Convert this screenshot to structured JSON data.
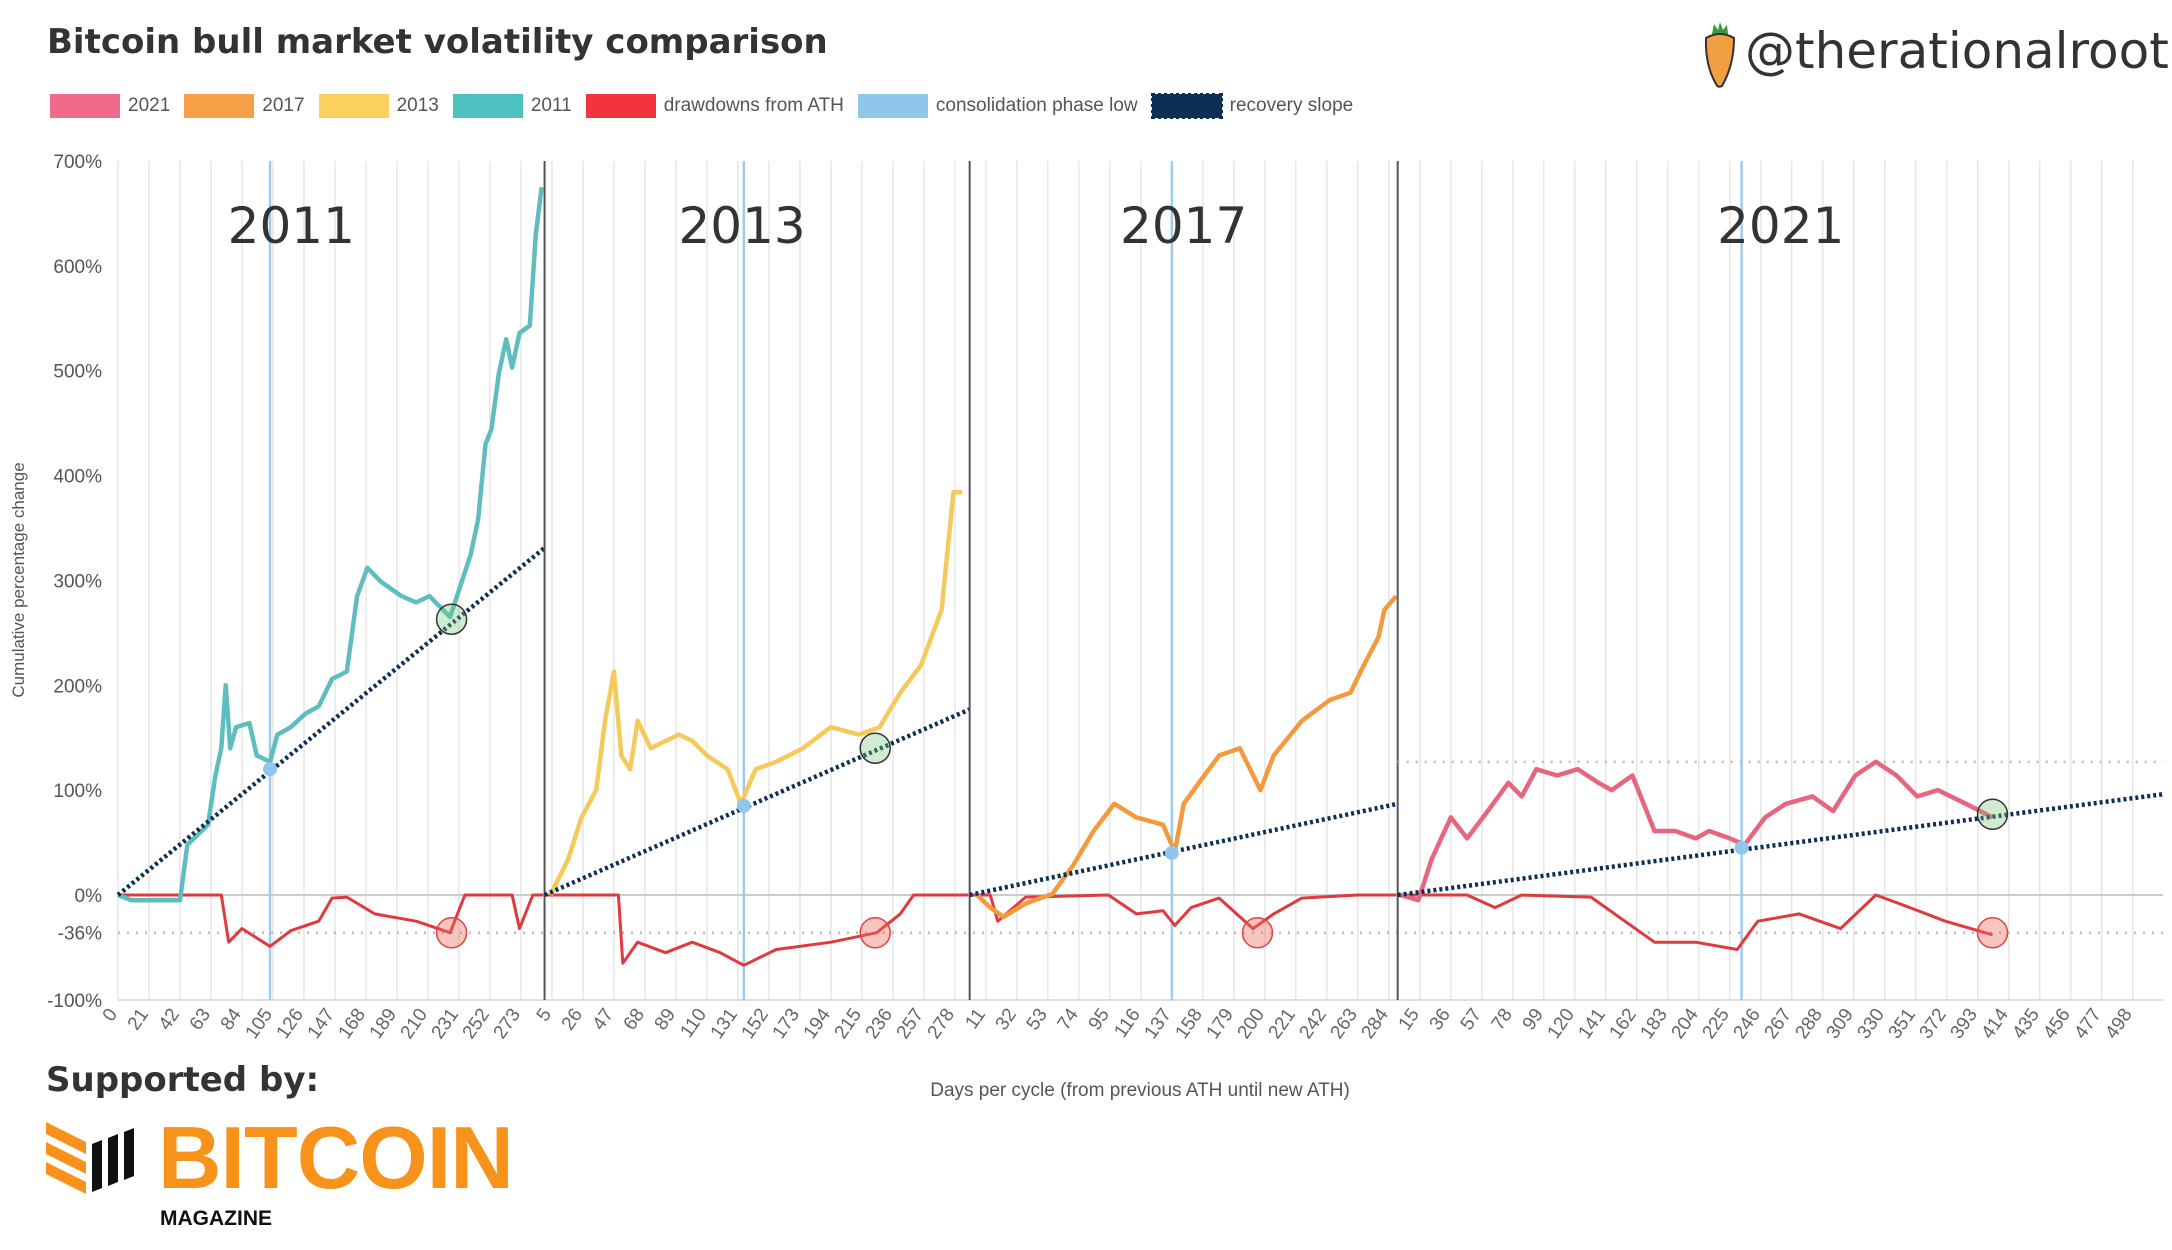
{
  "header": {
    "title": "Bitcoin bull market volatility comparison",
    "handle": "@therationalroot"
  },
  "footer": {
    "supported_by": "Supported by:",
    "logo_main": "BITCOIN",
    "logo_sub": "MAGAZINE"
  },
  "chart_data": {
    "type": "line",
    "title": "Bitcoin bull market volatility comparison",
    "xlabel": "Days per cycle (from previous ATH until new ATH)",
    "ylabel": "Cumulative percentage change",
    "ylim": [
      -100,
      700
    ],
    "y_ticks": [
      {
        "v": 700,
        "l": "700%"
      },
      {
        "v": 600,
        "l": "600%"
      },
      {
        "v": 500,
        "l": "500%"
      },
      {
        "v": 400,
        "l": "400%"
      },
      {
        "v": 300,
        "l": "300%"
      },
      {
        "v": 200,
        "l": "200%"
      },
      {
        "v": 100,
        "l": "100%"
      },
      {
        "v": 0,
        "l": "0%"
      },
      {
        "v": -36,
        "l": "-36%"
      },
      {
        "v": -100,
        "l": "-100%"
      }
    ],
    "legend": [
      {
        "label": "2021",
        "color": "#f06a8a"
      },
      {
        "label": "2017",
        "color": "#f7a047"
      },
      {
        "label": "2013",
        "color": "#fcd05c"
      },
      {
        "label": "2011",
        "color": "#4dc0c0"
      },
      {
        "label": "drawdowns from ATH",
        "color": "#f2343c"
      },
      {
        "label": "consolidation phase low",
        "color": "#8fc6ea"
      },
      {
        "label": "recovery slope",
        "color": "#0d2f55"
      }
    ],
    "cycles": [
      {
        "name": "2011",
        "offset": 0,
        "color": "#5fbdbd",
        "x_ticks": [
          0,
          21,
          42,
          63,
          84,
          105,
          126,
          147,
          168,
          189,
          210,
          231,
          252,
          273
        ],
        "price": [
          [
            0,
            0
          ],
          [
            9,
            -5
          ],
          [
            42,
            -5
          ],
          [
            47,
            48
          ],
          [
            61,
            67
          ],
          [
            66,
            114
          ],
          [
            70,
            140
          ],
          [
            73,
            200
          ],
          [
            76,
            140
          ],
          [
            80,
            160
          ],
          [
            89,
            164
          ],
          [
            94,
            133
          ],
          [
            103,
            127
          ],
          [
            108,
            153
          ],
          [
            117,
            160
          ],
          [
            127,
            173
          ],
          [
            136,
            180
          ],
          [
            145,
            206
          ],
          [
            155,
            213
          ],
          [
            162,
            285
          ],
          [
            169,
            312
          ],
          [
            178,
            299
          ],
          [
            192,
            285
          ],
          [
            202,
            279
          ],
          [
            211,
            285
          ],
          [
            225,
            265
          ],
          [
            239,
            325
          ],
          [
            244,
            358
          ],
          [
            249,
            430
          ],
          [
            253,
            444
          ],
          [
            258,
            497
          ],
          [
            263,
            530
          ],
          [
            267,
            503
          ],
          [
            272,
            536
          ],
          [
            279,
            543
          ],
          [
            283,
            629
          ],
          [
            287,
            675
          ]
        ],
        "drawdown": [
          [
            0,
            0
          ],
          [
            70,
            0
          ],
          [
            75,
            -45
          ],
          [
            84,
            -32
          ],
          [
            103,
            -49
          ],
          [
            117,
            -34
          ],
          [
            136,
            -25
          ],
          [
            145,
            -3
          ],
          [
            155,
            -2
          ],
          [
            174,
            -18
          ],
          [
            202,
            -25
          ],
          [
            225,
            -36
          ],
          [
            235,
            0
          ],
          [
            267,
            0
          ],
          [
            272,
            -32
          ],
          [
            281,
            0
          ],
          [
            288,
            0
          ]
        ],
        "consolidation_day": 103,
        "consolidation_value": 120,
        "slope_end": [
          289,
          331
        ],
        "green_marker": [
          226,
          263
        ],
        "red_marker": [
          226,
          -36
        ]
      },
      {
        "name": "2013",
        "offset": 289,
        "color": "#f6c95c",
        "x_ticks": [
          5,
          26,
          47,
          68,
          89,
          110,
          131,
          152,
          173,
          194,
          215,
          236,
          257,
          278
        ],
        "price": [
          [
            4,
            0
          ],
          [
            16,
            34
          ],
          [
            25,
            74
          ],
          [
            35,
            100
          ],
          [
            41,
            166
          ],
          [
            47,
            213
          ],
          [
            52,
            133
          ],
          [
            58,
            120
          ],
          [
            63,
            166
          ],
          [
            72,
            140
          ],
          [
            82,
            147
          ],
          [
            91,
            153
          ],
          [
            100,
            147
          ],
          [
            110,
            133
          ],
          [
            124,
            120
          ],
          [
            133,
            87
          ],
          [
            143,
            120
          ],
          [
            157,
            127
          ],
          [
            175,
            140
          ],
          [
            194,
            160
          ],
          [
            213,
            153
          ],
          [
            227,
            160
          ],
          [
            241,
            193
          ],
          [
            255,
            219
          ],
          [
            269,
            272
          ],
          [
            277,
            384
          ],
          [
            283,
            384
          ]
        ],
        "drawdown": [
          [
            0,
            0
          ],
          [
            50,
            0
          ],
          [
            53,
            -65
          ],
          [
            63,
            -45
          ],
          [
            82,
            -55
          ],
          [
            100,
            -45
          ],
          [
            119,
            -55
          ],
          [
            135,
            -67
          ],
          [
            157,
            -52
          ],
          [
            194,
            -45
          ],
          [
            225,
            -36
          ],
          [
            241,
            -18
          ],
          [
            250,
            0
          ],
          [
            287,
            0
          ]
        ],
        "consolidation_day": 135,
        "consolidation_value": 85,
        "slope_end": [
          288,
          177
        ],
        "green_marker": [
          224,
          140
        ],
        "red_marker": [
          224,
          -36
        ]
      },
      {
        "name": "2017",
        "offset": 577,
        "color": "#f29a3c",
        "x_ticks": [
          11,
          32,
          53,
          74,
          95,
          116,
          137,
          158,
          179,
          200,
          221,
          242,
          263,
          284
        ],
        "price": [
          [
            5,
            0
          ],
          [
            14,
            -12
          ],
          [
            23,
            -21
          ],
          [
            38,
            -8
          ],
          [
            56,
            1
          ],
          [
            70,
            28
          ],
          [
            84,
            61
          ],
          [
            98,
            87
          ],
          [
            113,
            74
          ],
          [
            131,
            67
          ],
          [
            139,
            41
          ],
          [
            145,
            87
          ],
          [
            159,
            114
          ],
          [
            169,
            133
          ],
          [
            183,
            140
          ],
          [
            197,
            100
          ],
          [
            206,
            133
          ],
          [
            225,
            166
          ],
          [
            244,
            186
          ],
          [
            258,
            193
          ],
          [
            267,
            219
          ],
          [
            277,
            246
          ],
          [
            281,
            272
          ],
          [
            289,
            285
          ]
        ],
        "drawdown": [
          [
            0,
            0
          ],
          [
            14,
            0
          ],
          [
            19,
            -25
          ],
          [
            38,
            -2
          ],
          [
            94,
            0
          ],
          [
            113,
            -18
          ],
          [
            131,
            -15
          ],
          [
            139,
            -29
          ],
          [
            150,
            -12
          ],
          [
            169,
            -3
          ],
          [
            192,
            -32
          ],
          [
            206,
            -18
          ],
          [
            225,
            -3
          ],
          [
            263,
            0
          ],
          [
            289,
            0
          ]
        ],
        "consolidation_day": 137,
        "consolidation_value": 40,
        "slope_end": [
          290,
          87
        ],
        "green_marker": null,
        "red_marker": [
          195,
          -36
        ]
      },
      {
        "name": "2021",
        "offset": 867,
        "color": "#e8657f",
        "x_ticks": [
          15,
          36,
          57,
          78,
          99,
          120,
          141,
          162,
          183,
          204,
          225,
          246,
          267,
          288,
          309,
          330,
          351,
          372,
          393,
          414,
          435,
          456,
          477,
          498
        ],
        "price": [
          [
            2,
            0
          ],
          [
            14,
            -5
          ],
          [
            23,
            34
          ],
          [
            36,
            74
          ],
          [
            47,
            54
          ],
          [
            61,
            80
          ],
          [
            75,
            107
          ],
          [
            84,
            94
          ],
          [
            94,
            120
          ],
          [
            108,
            114
          ],
          [
            122,
            120
          ],
          [
            136,
            107
          ],
          [
            145,
            100
          ],
          [
            159,
            114
          ],
          [
            174,
            61
          ],
          [
            188,
            61
          ],
          [
            202,
            54
          ],
          [
            211,
            61
          ],
          [
            225,
            54
          ],
          [
            235,
            48
          ],
          [
            249,
            74
          ],
          [
            263,
            87
          ],
          [
            281,
            94
          ],
          [
            295,
            80
          ],
          [
            310,
            114
          ],
          [
            324,
            127
          ],
          [
            338,
            114
          ],
          [
            352,
            94
          ],
          [
            366,
            100
          ],
          [
            385,
            87
          ],
          [
            403,
            74
          ]
        ],
        "drawdown": [
          [
            0,
            0
          ],
          [
            47,
            0
          ],
          [
            66,
            -12
          ],
          [
            84,
            0
          ],
          [
            131,
            -2
          ],
          [
            174,
            -45
          ],
          [
            202,
            -45
          ],
          [
            230,
            -52
          ],
          [
            244,
            -25
          ],
          [
            272,
            -18
          ],
          [
            300,
            -32
          ],
          [
            324,
            0
          ],
          [
            347,
            -12
          ],
          [
            371,
            -25
          ],
          [
            403,
            -38
          ]
        ],
        "consolidation_day": 233,
        "consolidation_value": 45,
        "slope_end": [
          518,
          96
        ],
        "green_marker": [
          403,
          77
        ],
        "red_marker": [
          403,
          -36
        ],
        "top_level": 127
      }
    ]
  }
}
